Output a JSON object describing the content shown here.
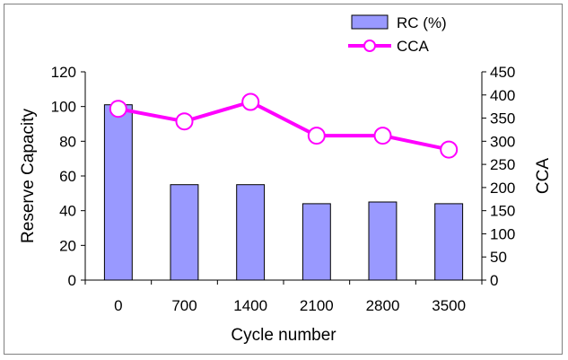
{
  "chart_data": {
    "type": "bar",
    "categories": [
      "0",
      "700",
      "1400",
      "2100",
      "2800",
      "3500"
    ],
    "series": [
      {
        "name": "RC (%)",
        "type": "bar",
        "axis": "left",
        "values": [
          101,
          55,
          55,
          44,
          45,
          44
        ],
        "color": "#9999ff"
      },
      {
        "name": "CCA",
        "type": "line",
        "axis": "right",
        "values": [
          370,
          343,
          385,
          312,
          312,
          282
        ],
        "color": "#ff00ff"
      }
    ],
    "xlabel": "Cycle number",
    "ylabel": "Reserve Capacity",
    "y2label": "CCA",
    "ylim": [
      0,
      120
    ],
    "y2lim": [
      0,
      450
    ],
    "yticks": [
      "0",
      "20",
      "40",
      "60",
      "80",
      "100",
      "120"
    ],
    "y2ticks": [
      "0",
      "50",
      "100",
      "150",
      "200",
      "250",
      "300",
      "350",
      "400",
      "450"
    ],
    "legend": "top-right",
    "grid": false
  }
}
